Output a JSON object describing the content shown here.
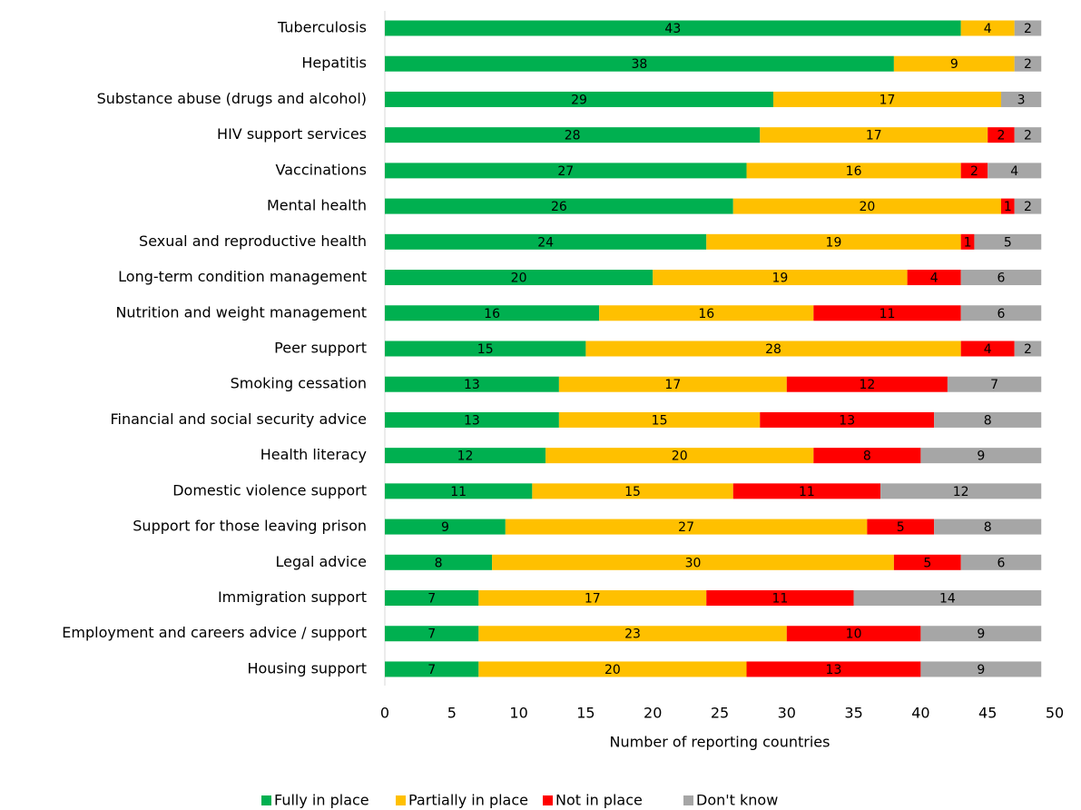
{
  "chart_data": {
    "type": "stacked_bar_horizontal",
    "x_label": "Number of reporting countries",
    "categories": [
      "Tuberculosis",
      "Hepatitis",
      "Substance abuse (drugs and alcohol)",
      "HIV support services",
      "Vaccinations",
      "Mental health",
      "Sexual and reproductive health",
      "Long-term condition management",
      "Nutrition and weight management",
      "Peer support",
      "Smoking cessation",
      "Financial and social security advice",
      "Health literacy",
      "Domestic violence support",
      "Support for those leaving prison",
      "Legal advice",
      "Immigration support",
      "Employment and careers advice / support",
      "Housing support"
    ],
    "series": [
      {
        "name": "Fully in place",
        "color": "#00b050",
        "values": [
          43,
          38,
          29,
          28,
          27,
          26,
          24,
          20,
          16,
          15,
          13,
          13,
          12,
          11,
          9,
          8,
          7,
          7,
          7
        ]
      },
      {
        "name": "Partially in place",
        "color": "#ffc000",
        "values": [
          4,
          9,
          17,
          17,
          16,
          20,
          19,
          19,
          16,
          28,
          17,
          15,
          20,
          15,
          27,
          30,
          17,
          23,
          20
        ]
      },
      {
        "name": "Not in place",
        "color": "#ff0000",
        "values": [
          null,
          null,
          null,
          2,
          2,
          1,
          1,
          4,
          11,
          4,
          12,
          13,
          8,
          11,
          5,
          5,
          11,
          10,
          13
        ]
      },
      {
        "name": "Don't know",
        "color": "#a6a6a6",
        "values": [
          2,
          2,
          3,
          2,
          4,
          2,
          5,
          6,
          6,
          2,
          7,
          8,
          9,
          12,
          8,
          6,
          14,
          9,
          9
        ]
      }
    ],
    "xlim": [
      0,
      50
    ],
    "xticks": [
      0,
      5,
      10,
      15,
      20,
      25,
      30,
      35,
      40,
      45,
      50
    ],
    "grid": false,
    "legend": "bottom"
  }
}
